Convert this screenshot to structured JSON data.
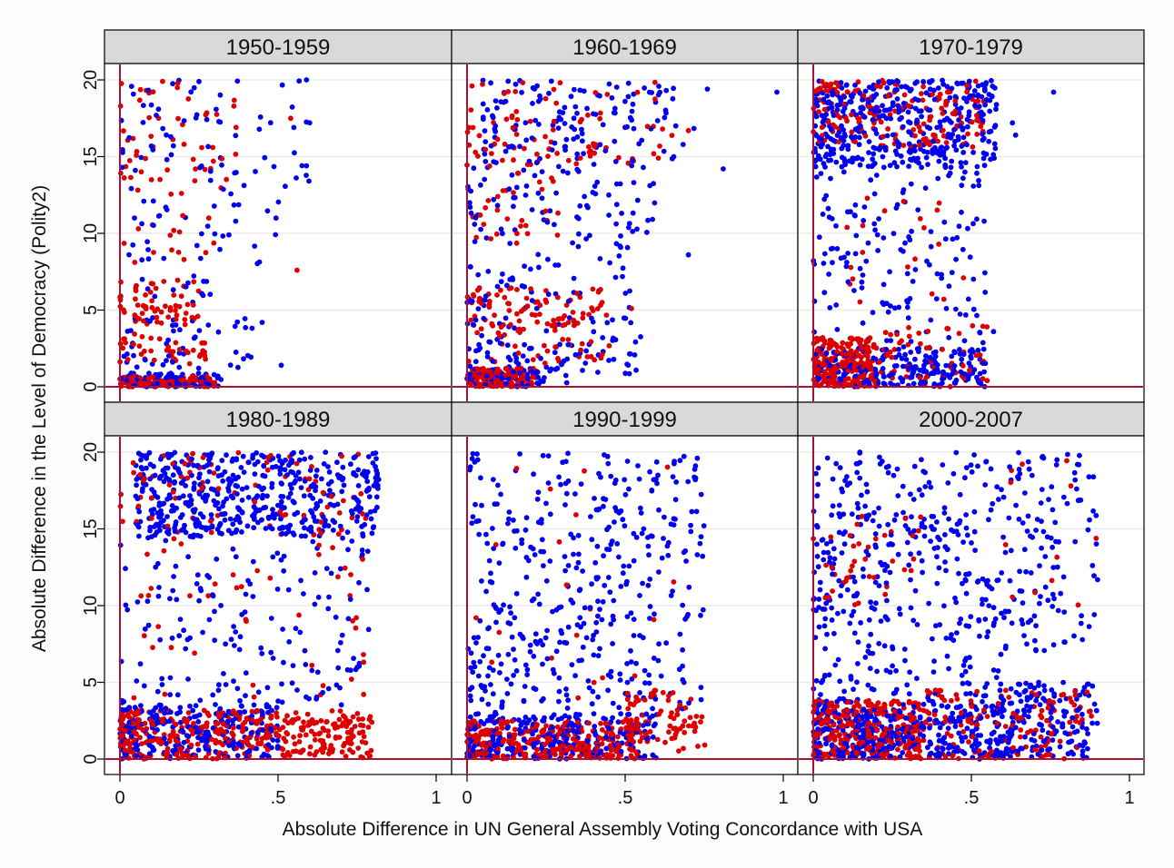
{
  "chart_data": {
    "type": "scatter",
    "xlabel": "Absolute Difference in UN General Assembly Voting Concordance with USA",
    "ylabel": "Absolute Difference in the Level of Democracy (Polity2)",
    "xlim": [
      0,
      1
    ],
    "ylim": [
      0,
      20
    ],
    "x_ticks": [
      0,
      0.5,
      1
    ],
    "x_tick_labels": [
      "0",
      ".5",
      "1"
    ],
    "y_ticks": [
      0,
      5,
      10,
      15,
      20
    ],
    "y_tick_labels": [
      "0",
      "5",
      "10",
      "15",
      "20"
    ],
    "reference_lines": {
      "x": 0,
      "y": 0,
      "color": "#b01030"
    },
    "grid": "horizontal",
    "series_colors": [
      "#0000ee",
      "#dd0000"
    ],
    "panels": [
      {
        "title": "1950-1959",
        "clusters": [
          {
            "series": 0,
            "n": 90,
            "x": [
              0,
              0.32
            ],
            "y": [
              0,
              0.9
            ]
          },
          {
            "series": 1,
            "n": 110,
            "x": [
              0,
              0.3
            ],
            "y": [
              0,
              0.7
            ]
          },
          {
            "series": 0,
            "n": 45,
            "x": [
              0.01,
              0.45
            ],
            "y": [
              0.9,
              4.5
            ]
          },
          {
            "series": 1,
            "n": 40,
            "x": [
              0.0,
              0.28
            ],
            "y": [
              1.5,
              3.5
            ]
          },
          {
            "series": 1,
            "n": 60,
            "x": [
              0.0,
              0.25
            ],
            "y": [
              4,
              7
            ]
          },
          {
            "series": 0,
            "n": 20,
            "x": [
              0.02,
              0.3
            ],
            "y": [
              4,
              8.5
            ]
          },
          {
            "series": 0,
            "n": 30,
            "x": [
              0.0,
              0.5
            ],
            "y": [
              8,
              12
            ]
          },
          {
            "series": 1,
            "n": 15,
            "x": [
              0.0,
              0.3
            ],
            "y": [
              8,
              12
            ]
          },
          {
            "series": 1,
            "n": 55,
            "x": [
              0.0,
              0.37
            ],
            "y": [
              12,
              20
            ]
          },
          {
            "series": 0,
            "n": 70,
            "x": [
              0.0,
              0.6
            ],
            "y": [
              12,
              20
            ]
          }
        ],
        "points": [
          {
            "series": 0,
            "x": 0.59,
            "y": 20
          },
          {
            "series": 0,
            "x": 0.6,
            "y": 17.2
          },
          {
            "series": 0,
            "x": 0.59,
            "y": 14.4
          },
          {
            "series": 1,
            "x": 0.56,
            "y": 7.6
          },
          {
            "series": 0,
            "x": 0.55,
            "y": 16.9
          },
          {
            "series": 0,
            "x": 0.51,
            "y": 1.4
          },
          {
            "series": 1,
            "x": 0.54,
            "y": 17.5
          }
        ]
      },
      {
        "title": "1960-1969",
        "clusters": [
          {
            "series": 1,
            "n": 140,
            "x": [
              0,
              0.22
            ],
            "y": [
              0,
              1.2
            ]
          },
          {
            "series": 0,
            "n": 70,
            "x": [
              0,
              0.32
            ],
            "y": [
              0,
              1.2
            ]
          },
          {
            "series": 0,
            "n": 90,
            "x": [
              0,
              0.55
            ],
            "y": [
              0.8,
              4.5
            ]
          },
          {
            "series": 1,
            "n": 90,
            "x": [
              0.0,
              0.45
            ],
            "y": [
              3.5,
              6.5
            ]
          },
          {
            "series": 1,
            "n": 30,
            "x": [
              0.0,
              0.45
            ],
            "y": [
              1.5,
              3.5
            ]
          },
          {
            "series": 0,
            "n": 50,
            "x": [
              0.0,
              0.55
            ],
            "y": [
              5,
              9
            ]
          },
          {
            "series": 0,
            "n": 90,
            "x": [
              0.0,
              0.6
            ],
            "y": [
              9,
              14.5
            ]
          },
          {
            "series": 1,
            "n": 35,
            "x": [
              0.0,
              0.3
            ],
            "y": [
              9,
              14.5
            ]
          },
          {
            "series": 1,
            "n": 80,
            "x": [
              0.0,
              0.65
            ],
            "y": [
              14.5,
              20
            ]
          },
          {
            "series": 0,
            "n": 140,
            "x": [
              0.05,
              0.72
            ],
            "y": [
              14.5,
              20
            ]
          }
        ],
        "points": [
          {
            "series": 0,
            "x": 0.98,
            "y": 19.2
          },
          {
            "series": 0,
            "x": 0.81,
            "y": 14.2
          },
          {
            "series": 0,
            "x": 0.7,
            "y": 8.6
          },
          {
            "series": 1,
            "x": 0.7,
            "y": 16.7
          },
          {
            "series": 0,
            "x": 0.76,
            "y": 19.4
          },
          {
            "series": 1,
            "x": 0.52,
            "y": 5.1
          }
        ]
      },
      {
        "title": "1970-1979",
        "clusters": [
          {
            "series": 1,
            "n": 220,
            "x": [
              0,
              0.2
            ],
            "y": [
              0,
              3.2
            ]
          },
          {
            "series": 0,
            "n": 220,
            "x": [
              0,
              0.55
            ],
            "y": [
              0,
              2.5
            ]
          },
          {
            "series": 1,
            "n": 60,
            "x": [
              0.2,
              0.55
            ],
            "y": [
              0,
              4
            ]
          },
          {
            "series": 0,
            "n": 150,
            "x": [
              0.0,
              0.56
            ],
            "y": [
              2.5,
              14
            ]
          },
          {
            "series": 1,
            "n": 20,
            "x": [
              0.1,
              0.5
            ],
            "y": [
              5,
              13
            ]
          },
          {
            "series": 0,
            "n": 420,
            "x": [
              0.0,
              0.58
            ],
            "y": [
              14.3,
              20
            ]
          },
          {
            "series": 1,
            "n": 180,
            "x": [
              0.0,
              0.55
            ],
            "y": [
              15.5,
              20
            ]
          }
        ],
        "points": [
          {
            "series": 0,
            "x": 0.76,
            "y": 19.2
          },
          {
            "series": 0,
            "x": 0.63,
            "y": 17.2
          },
          {
            "series": 0,
            "x": 0.64,
            "y": 16.4
          },
          {
            "series": 1,
            "x": 0.55,
            "y": 0.4
          },
          {
            "series": 0,
            "x": 0.57,
            "y": 3.6
          }
        ]
      },
      {
        "title": "1980-1989",
        "clusters": [
          {
            "series": 1,
            "n": 420,
            "x": [
              0,
              0.8
            ],
            "y": [
              0,
              3.2
            ]
          },
          {
            "series": 0,
            "n": 220,
            "x": [
              0,
              0.5
            ],
            "y": [
              0,
              3.6
            ]
          },
          {
            "series": 0,
            "n": 160,
            "x": [
              0.0,
              0.8
            ],
            "y": [
              3.5,
              14.5
            ]
          },
          {
            "series": 1,
            "n": 45,
            "x": [
              0.0,
              0.8
            ],
            "y": [
              3.5,
              14.5
            ]
          },
          {
            "series": 0,
            "n": 500,
            "x": [
              0.05,
              0.82
            ],
            "y": [
              14.5,
              20
            ]
          },
          {
            "series": 1,
            "n": 90,
            "x": [
              0.0,
              0.8
            ],
            "y": [
              14.5,
              20
            ]
          }
        ],
        "points": []
      },
      {
        "title": "1990-1999",
        "clusters": [
          {
            "series": 1,
            "n": 320,
            "x": [
              0,
              0.55
            ],
            "y": [
              0,
              2.5
            ]
          },
          {
            "series": 0,
            "n": 260,
            "x": [
              0,
              0.6
            ],
            "y": [
              0,
              3
            ]
          },
          {
            "series": 1,
            "n": 80,
            "x": [
              0.5,
              0.76
            ],
            "y": [
              0.5,
              4.5
            ]
          },
          {
            "series": 0,
            "n": 420,
            "x": [
              0.0,
              0.75
            ],
            "y": [
              3,
              20
            ]
          },
          {
            "series": 1,
            "n": 20,
            "x": [
              0.0,
              0.7
            ],
            "y": [
              3,
              20
            ]
          }
        ],
        "points": []
      },
      {
        "title": "2000-2007",
        "clusters": [
          {
            "series": 1,
            "n": 300,
            "x": [
              0,
              0.35
            ],
            "y": [
              0,
              3.8
            ]
          },
          {
            "series": 0,
            "n": 380,
            "x": [
              0,
              0.6
            ],
            "y": [
              0,
              3.5
            ]
          },
          {
            "series": 1,
            "n": 140,
            "x": [
              0.35,
              0.88
            ],
            "y": [
              0,
              4.5
            ]
          },
          {
            "series": 0,
            "n": 160,
            "x": [
              0.6,
              0.9
            ],
            "y": [
              0,
              5
            ]
          },
          {
            "series": 0,
            "n": 400,
            "x": [
              0.0,
              0.6
            ],
            "y": [
              3.5,
              20
            ]
          },
          {
            "series": 1,
            "n": 40,
            "x": [
              0.0,
              0.35
            ],
            "y": [
              10,
              16
            ]
          },
          {
            "series": 0,
            "n": 120,
            "x": [
              0.6,
              0.9
            ],
            "y": [
              7,
              20
            ]
          },
          {
            "series": 1,
            "n": 12,
            "x": [
              0.6,
              0.9
            ],
            "y": [
              10,
              20
            ]
          }
        ],
        "points": []
      }
    ]
  }
}
